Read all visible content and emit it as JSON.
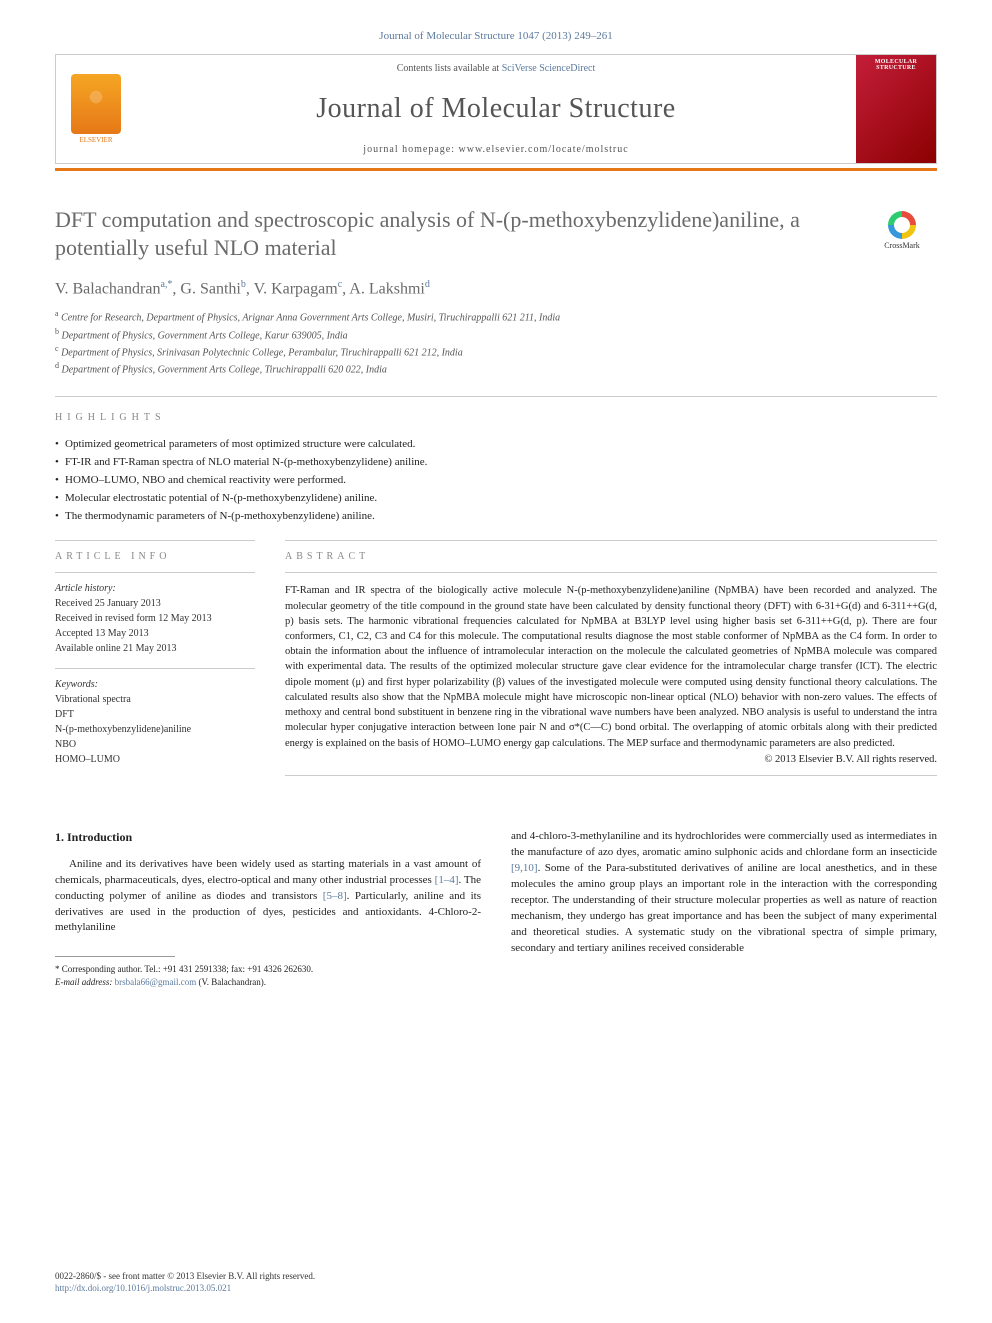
{
  "citation": "Journal of Molecular Structure 1047 (2013) 249–261",
  "header": {
    "contents_prefix": "Contents lists available at ",
    "contents_link": "SciVerse ScienceDirect",
    "journal_name": "Journal of Molecular Structure",
    "homepage_prefix": "journal homepage: ",
    "homepage_url": "www.elsevier.com/locate/molstruc",
    "publisher": "ELSEVIER",
    "cover_title": "MOLECULAR STRUCTURE"
  },
  "crossmark": "CrossMark",
  "article": {
    "title": "DFT computation and spectroscopic analysis of N-(p-methoxybenzylidene)aniline, a potentially useful NLO material",
    "authors_html": "V. Balachandran",
    "authors": [
      {
        "name": "V. Balachandran",
        "sup": "a,*"
      },
      {
        "name": "G. Santhi",
        "sup": "b"
      },
      {
        "name": "V. Karpagam",
        "sup": "c"
      },
      {
        "name": "A. Lakshmi",
        "sup": "d"
      }
    ],
    "affiliations": [
      {
        "sup": "a",
        "text": "Centre for Research, Department of Physics, Arignar Anna Government Arts College, Musiri, Tiruchirappalli 621 211, India"
      },
      {
        "sup": "b",
        "text": "Department of Physics, Government Arts College, Karur 639005, India"
      },
      {
        "sup": "c",
        "text": "Department of Physics, Srinivasan Polytechnic College, Perambalur, Tiruchirappalli 621 212, India"
      },
      {
        "sup": "d",
        "text": "Department of Physics, Government Arts College, Tiruchirappalli 620 022, India"
      }
    ]
  },
  "highlights_label": "HIGHLIGHTS",
  "highlights": [
    "Optimized geometrical parameters of most optimized structure were calculated.",
    "FT-IR and FT-Raman spectra of NLO material N-(p-methoxybenzylidene) aniline.",
    "HOMO–LUMO, NBO and chemical reactivity were performed.",
    "Molecular electrostatic potential of N-(p-methoxybenzylidene) aniline.",
    "The thermodynamic parameters of N-(p-methoxybenzylidene) aniline."
  ],
  "article_info": {
    "heading": "ARTICLE INFO",
    "history_label": "Article history:",
    "history": [
      "Received 25 January 2013",
      "Received in revised form 12 May 2013",
      "Accepted 13 May 2013",
      "Available online 21 May 2013"
    ],
    "keywords_label": "Keywords:",
    "keywords": [
      "Vibrational spectra",
      "DFT",
      "N-(p-methoxybenzylidene)aniline",
      "NBO",
      "HOMO–LUMO"
    ]
  },
  "abstract": {
    "heading": "ABSTRACT",
    "text": "FT-Raman and IR spectra of the biologically active molecule N-(p-methoxybenzylidene)aniline (NpMBA) have been recorded and analyzed. The molecular geometry of the title compound in the ground state have been calculated by density functional theory (DFT) with 6-31+G(d) and 6-311++G(d, p) basis sets. The harmonic vibrational frequencies calculated for NpMBA at B3LYP level using higher basis set 6-311++G(d, p). There are four conformers, C1, C2, C3 and C4 for this molecule. The computational results diagnose the most stable conformer of NpMBA as the C4 form. In order to obtain the information about the influence of intramolecular interaction on the molecule the calculated geometries of NpMBA molecule was compared with experimental data. The results of the optimized molecular structure gave clear evidence for the intramolecular charge transfer (ICT). The electric dipole moment (μ) and first hyper polarizability (β) values of the investigated molecule were computed using density functional theory calculations. The calculated results also show that the NpMBA molecule might have microscopic non-linear optical (NLO) behavior with non-zero values. The effects of methoxy and central bond substituent in benzene ring in the vibrational wave numbers have been analyzed. NBO analysis is useful to understand the intra molecular hyper conjugative interaction between lone pair N and σ*(C—C) bond orbital. The overlapping of atomic orbitals along with their predicted energy is explained on the basis of HOMO–LUMO energy gap calculations. The MEP surface and thermodynamic parameters are also predicted.",
    "copyright": "© 2013 Elsevier B.V. All rights reserved."
  },
  "body": {
    "section_number": "1.",
    "section_title": "Introduction",
    "col1": "Aniline and its derivatives have been widely used as starting materials in a vast amount of chemicals, pharmaceuticals, dyes, electro-optical and many other industrial processes [1–4]. The conducting polymer of aniline as diodes and transistors [5–8]. Particularly, aniline and its derivatives are used in the production of dyes, pesticides and antioxidants. 4-Chloro-2-methylaniline",
    "col2": "and 4-chloro-3-methylaniline and its hydrochlorides were commercially used as intermediates in the manufacture of azo dyes, aromatic amino sulphonic acids and chlordane form an insecticide [9,10]. Some of the Para-substituted derivatives of aniline are local anesthetics, and in these molecules the amino group plays an important role in the interaction with the corresponding receptor. The understanding of their structure molecular properties as well as nature of reaction mechanism, they undergo has great importance and has been the subject of many experimental and theoretical studies. A systematic study on the vibrational spectra of simple primary, secondary and tertiary anilines received considerable",
    "refs": {
      "r1": "[1–4]",
      "r2": "[5–8]",
      "r3": "[9,10]"
    }
  },
  "corresponding": {
    "label": "* Corresponding author. Tel.: +91 431 2591338; fax: +91 4326 262630.",
    "email_label": "E-mail address:",
    "email": "brsbala66@gmail.com",
    "email_name": "(V. Balachandran)."
  },
  "footer": {
    "line1": "0022-2860/$ - see front matter © 2013 Elsevier B.V. All rights reserved.",
    "doi": "http://dx.doi.org/10.1016/j.molstruc.2013.05.021"
  },
  "colors": {
    "accent_orange": "#e67817",
    "link_blue": "#5b7a9e",
    "cover_red_a": "#c41e3a",
    "cover_red_b": "#8b0000",
    "text_gray": "#6a6a6a",
    "rule_gray": "#cccccc"
  }
}
